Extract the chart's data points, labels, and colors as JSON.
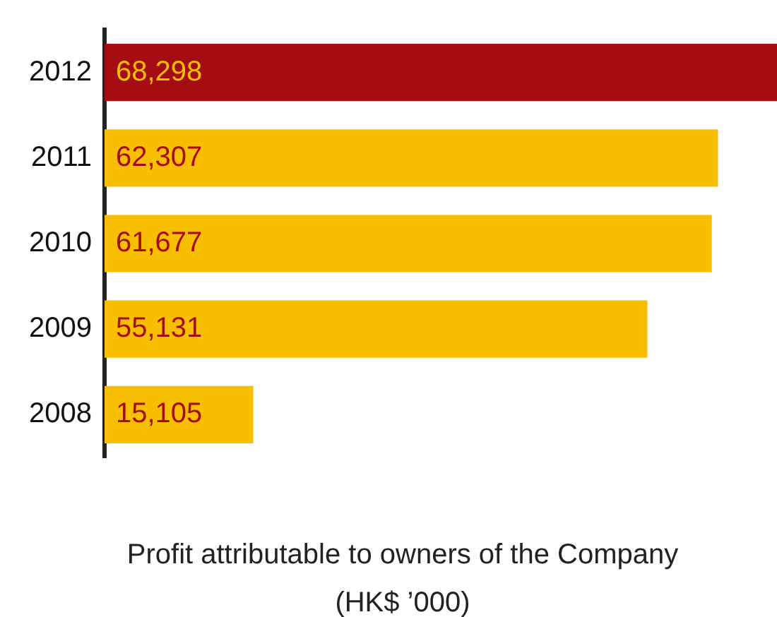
{
  "chart_data": {
    "type": "bar",
    "orientation": "horizontal",
    "title": "Profit attributable to owners of the Company",
    "subtitle": "(HK$ ’000)",
    "categories": [
      "2012",
      "2011",
      "2010",
      "2009",
      "2008"
    ],
    "values": [
      68298,
      62307,
      61677,
      55131,
      15105
    ],
    "colors": [
      "#a50d12",
      "#f8bf00",
      "#f8bf00",
      "#f8bf00",
      "#f8bf00"
    ],
    "value_labels": [
      "68,298",
      "62,307",
      "61,677",
      "55,131",
      "15,105"
    ],
    "legend": false
  }
}
